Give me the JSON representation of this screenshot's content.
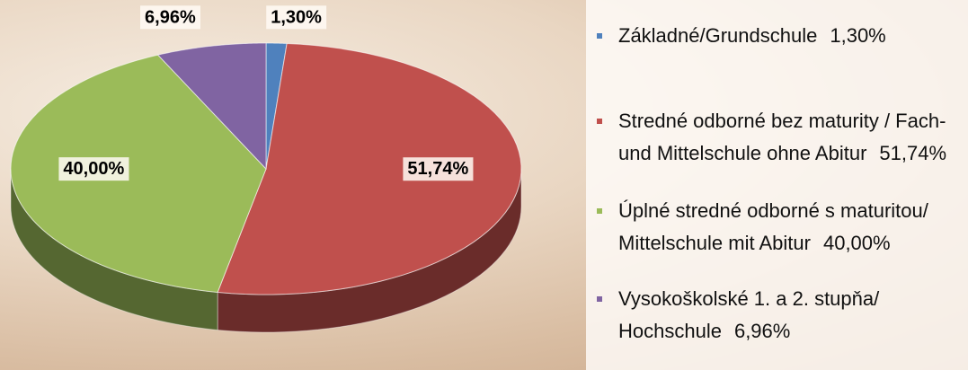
{
  "chart_data": {
    "type": "pie3d",
    "categories": [
      "Základné/Grundschule",
      "Stredné odborné bez maturity / Fach- und Mittelschule ohne Abitur",
      "Úplné stredné odborné s maturitou/ Mittelschule mit Abitur",
      "Vysokoškolské 1. a 2. stupňa/ Hochschule"
    ],
    "values": [
      1.3,
      51.74,
      40.0,
      6.96
    ],
    "value_labels": [
      "1,30%",
      "51,74%",
      "40,00%",
      "6,96%"
    ],
    "colors": [
      "#4f81bd",
      "#c0504d",
      "#9bbb59",
      "#8064a2"
    ],
    "legend": "right"
  }
}
